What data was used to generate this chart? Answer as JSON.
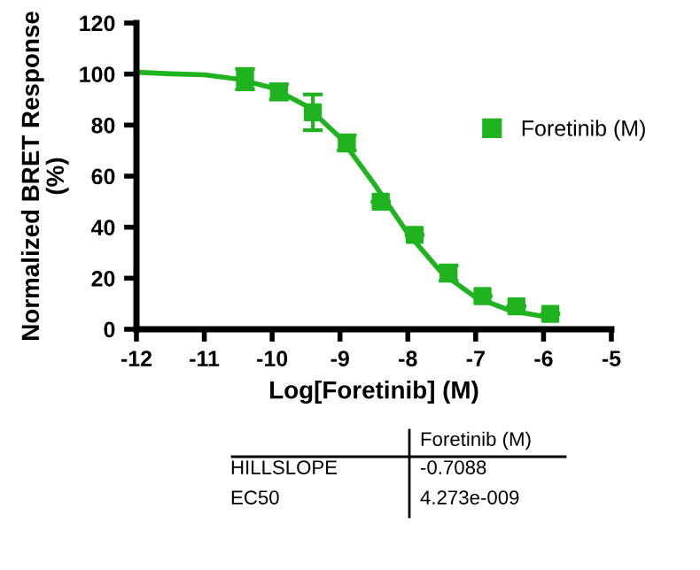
{
  "chart_data": {
    "type": "scatter",
    "xlabel": "Log[Foretinib] (M)",
    "ylabel": "Normalized BRET Response\n(%)",
    "xlim": [
      -12,
      -5
    ],
    "xticks": [
      -12,
      -11,
      -10,
      -9,
      -8,
      -7,
      -6,
      -5
    ],
    "ylim": [
      0,
      120
    ],
    "yticks": [
      0,
      20,
      40,
      60,
      80,
      100,
      120
    ],
    "grid": false,
    "legend": "right",
    "series": [
      {
        "name": "Foretinib (M)",
        "marker": "square",
        "color": "#1fb41f",
        "x": [
          -10.4,
          -9.9,
          -9.4,
          -8.9,
          -8.4,
          -7.9,
          -7.4,
          -6.9,
          -6.4,
          -5.9
        ],
        "values": [
          98,
          93,
          85,
          73,
          50,
          37,
          22,
          13,
          9,
          6
        ],
        "errors": [
          4,
          3,
          7,
          3,
          null,
          null,
          3,
          null,
          null,
          null
        ]
      },
      {
        "type": "line",
        "marker": "none",
        "line_style": "solid",
        "color": "#1fb41f",
        "x": [
          -12,
          -11.5,
          -11,
          -10.5,
          -10,
          -9.5,
          -9,
          -8.5,
          -8,
          -7.5,
          -7,
          -6.5,
          -6
        ],
        "values": [
          100.7,
          100.1,
          99.7,
          98.0,
          94.6,
          87.6,
          75.2,
          57.1,
          37.6,
          22.1,
          12.5,
          7.4,
          5.0
        ]
      }
    ],
    "annotations": [
      "Foretinib (M)",
      "HILLSLOPE",
      "-0.7088",
      "EC50",
      "4.273e-009"
    ]
  }
}
